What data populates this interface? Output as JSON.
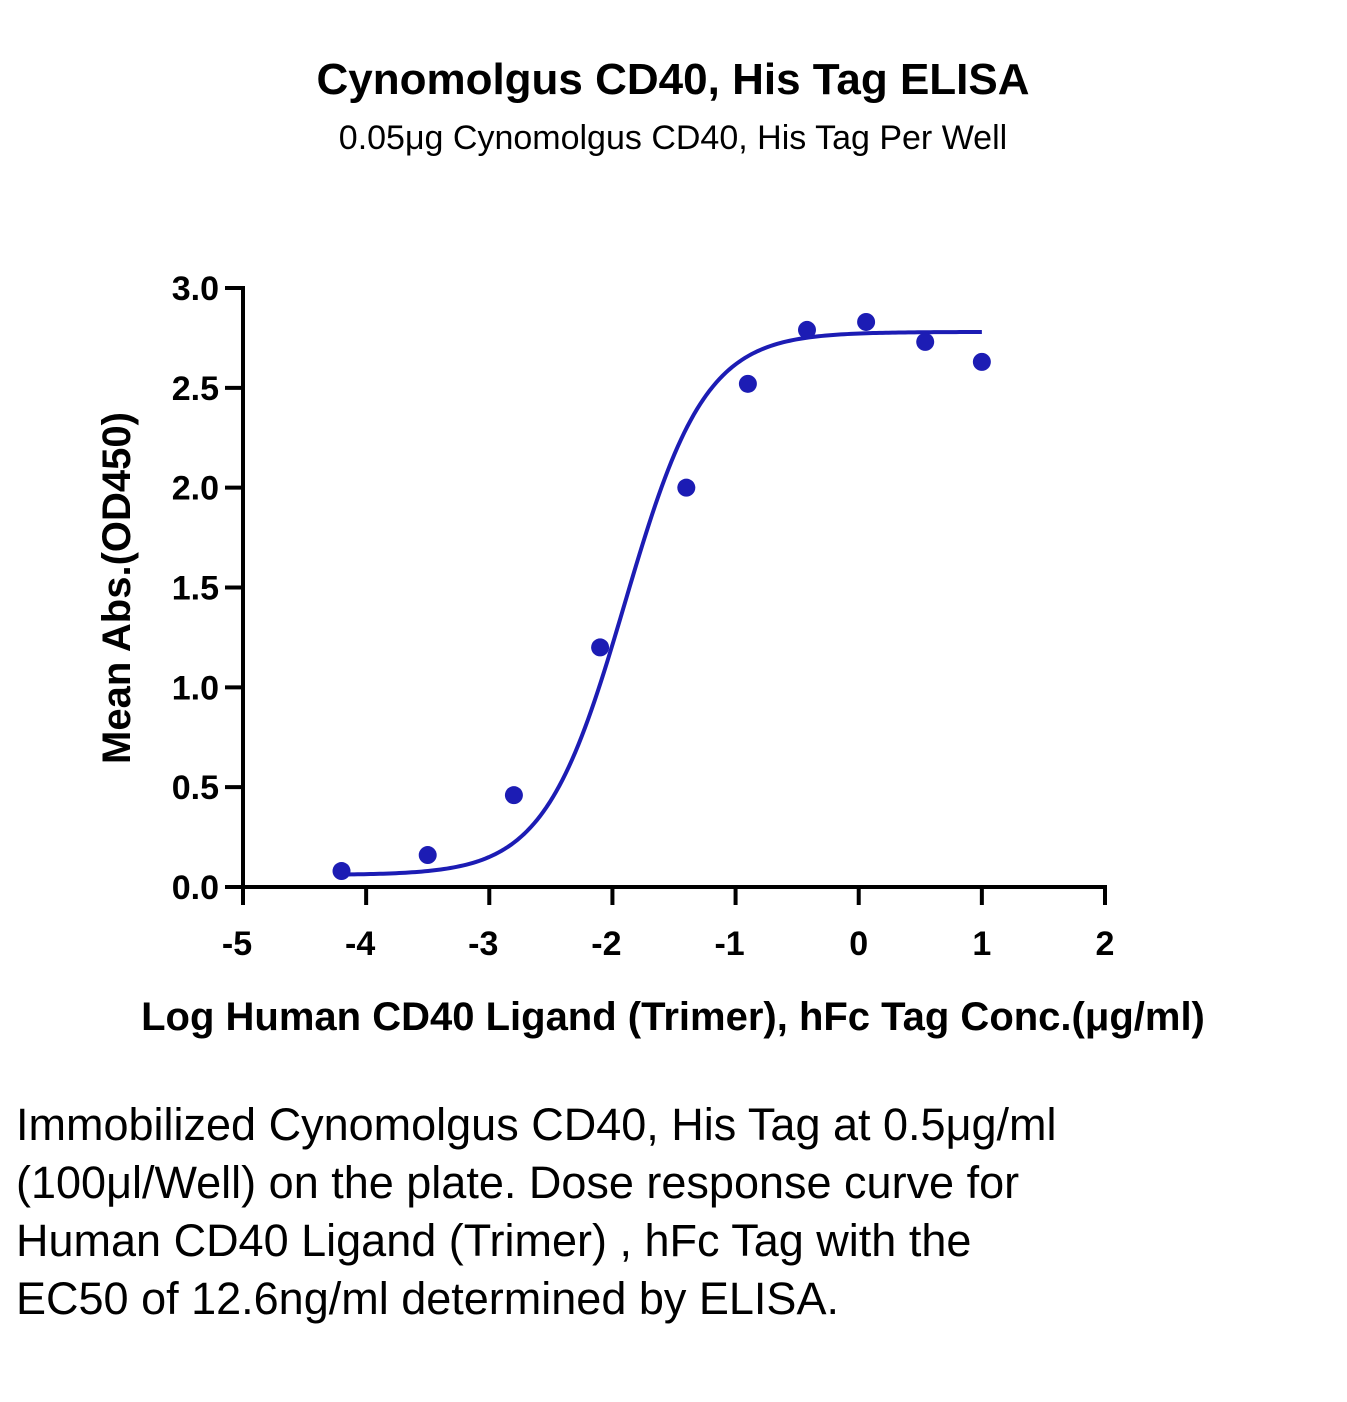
{
  "chart_data": {
    "type": "scatter",
    "title": "Cynomolgus CD40, His Tag ELISA",
    "subtitle": "0.05μg Cynomolgus CD40, His Tag Per Well",
    "xlabel": "Log Human CD40 Ligand (Trimer), hFc Tag Conc.(μg/ml)",
    "ylabel": "Mean Abs.(OD450)",
    "xlim": [
      -5,
      2
    ],
    "ylim": [
      0,
      3.0
    ],
    "xticks": [
      "-5",
      "-4",
      "-3",
      "-2",
      "-1",
      "0",
      "1",
      "2"
    ],
    "yticks": [
      "0.0",
      "0.5",
      "1.0",
      "1.5",
      "2.0",
      "2.5",
      "3.0"
    ],
    "series": [
      {
        "color": "#1c1cb4",
        "points": [
          {
            "x": -4.2,
            "y": 0.08
          },
          {
            "x": -3.5,
            "y": 0.16
          },
          {
            "x": -2.8,
            "y": 0.46
          },
          {
            "x": -2.1,
            "y": 1.2
          },
          {
            "x": -1.4,
            "y": 2.0
          },
          {
            "x": -0.9,
            "y": 2.52
          },
          {
            "x": -0.42,
            "y": 2.79
          },
          {
            "x": 0.06,
            "y": 2.83
          },
          {
            "x": 0.54,
            "y": 2.73
          },
          {
            "x": 1.0,
            "y": 2.63
          }
        ],
        "fit": {
          "type": "4PL",
          "bottom": 0.06,
          "top": 2.78,
          "logEC50": -1.9,
          "hill": 1.33,
          "x_range": [
            -4.2,
            1.0
          ]
        }
      }
    ],
    "grid": false,
    "legend": "none"
  },
  "caption": "Immobilized Cynomolgus CD40, His Tag at 0.5μg/ml (100μl/Well) on the plate. Dose response curve for Human CD40 Ligand (Trimer) , hFc Tag with the EC50 of 12.6ng/ml determined by ELISA."
}
